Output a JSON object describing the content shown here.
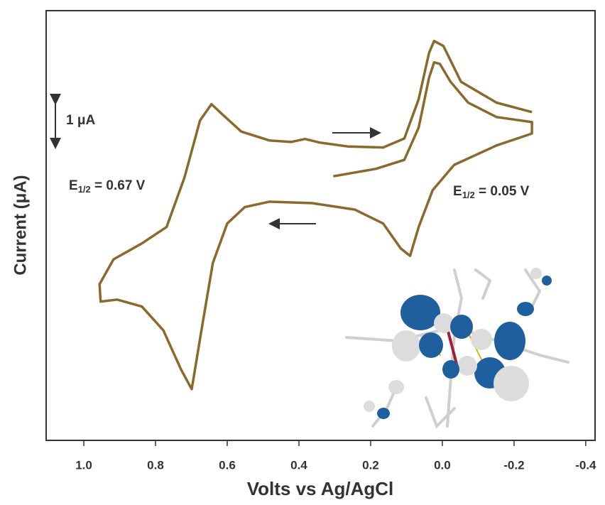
{
  "chart_data": {
    "type": "line",
    "xlabel": "Volts vs Ag/AgCl",
    "ylabel": "Current (μA)",
    "color": "#8a6a2c",
    "xlim": [
      1.105,
      -0.426
    ],
    "ylim": [
      0,
      8.64
    ],
    "xticks": [
      {
        "value": 1.0,
        "label": "1.0"
      },
      0.8,
      0.6,
      0.4,
      0.2,
      {
        "value": 0.0,
        "label": "0.0"
      },
      -0.2,
      -0.4
    ],
    "scale_bar": {
      "value": 1,
      "label": "1 μA"
    },
    "annotations": [
      {
        "main": "E",
        "sub": "1/2",
        "rest": " = 0.67 V"
      },
      {
        "main": "E",
        "sub": "1/2",
        "rest": " = 0.05 V"
      }
    ],
    "x": [
      0.304,
      0.185,
      0.106,
      0.066,
      0.037,
      0.023,
      0.007,
      -0.023,
      -0.072,
      -0.151,
      -0.25,
      -0.25,
      -0.151,
      -0.033,
      0.027,
      0.066,
      0.09,
      0.116,
      0.165,
      0.244,
      0.363,
      0.482,
      0.551,
      0.6,
      0.64,
      0.67,
      0.699,
      0.729,
      0.778,
      0.838,
      0.907,
      0.953,
      0.956,
      0.917,
      0.838,
      0.769,
      0.719,
      0.676,
      0.644,
      0.616,
      0.561,
      0.482,
      0.422,
      0.383,
      0.343,
      0.264,
      0.165,
      0.106,
      0.066,
      0.037,
      0.023,
      -0.003,
      -0.052,
      -0.151,
      -0.25
    ],
    "values": [
      5.31,
      5.46,
      5.64,
      6.29,
      7.29,
      7.6,
      7.57,
      7.21,
      6.79,
      6.5,
      6.4,
      6.17,
      5.93,
      5.54,
      5.03,
      4.29,
      3.71,
      3.86,
      4.36,
      4.64,
      4.77,
      4.8,
      4.69,
      4.36,
      3.57,
      2.29,
      1.03,
      1.43,
      2.21,
      2.69,
      2.83,
      2.79,
      3.14,
      3.64,
      3.96,
      4.29,
      5.29,
      6.43,
      6.76,
      6.57,
      6.21,
      6.03,
      6.0,
      6.06,
      5.99,
      5.91,
      5.89,
      6.07,
      6.86,
      7.79,
      8.03,
      7.93,
      7.21,
      6.79,
      6.6
    ]
  }
}
